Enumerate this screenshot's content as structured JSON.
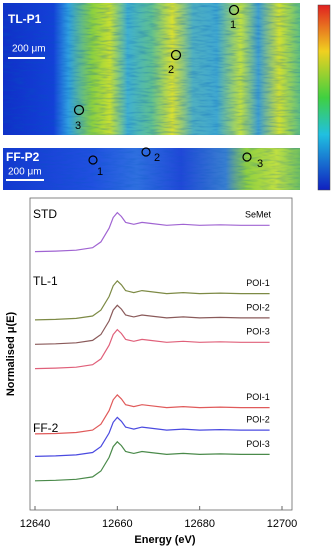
{
  "panels": [
    {
      "label": "TL-P1",
      "scale_bar": "200 μm",
      "points": [
        "1",
        "2",
        "3"
      ]
    },
    {
      "label": "FF-P2",
      "scale_bar": "200 μm",
      "points": [
        "1",
        "2",
        "3"
      ]
    }
  ],
  "chart_data": {
    "type": "line",
    "x_label": "Energy (eV)",
    "y_label": "Normalised μ(E)",
    "group_labels": [
      "STD",
      "TL-1",
      "FF-2"
    ],
    "x": [
      12640,
      12645,
      12650,
      12654,
      12656,
      12658,
      12659,
      12660,
      12661,
      12662,
      12664,
      12666,
      12668,
      12672,
      12676,
      12680,
      12685,
      12690,
      12697
    ],
    "xlim": [
      12640,
      12700
    ],
    "xticks": [
      12640,
      12660,
      12680,
      12700
    ],
    "ylim": [
      0,
      32
    ],
    "series": [
      {
        "name": "SeMet",
        "color": "#a064d2",
        "values": [
          26.5,
          26.55,
          26.65,
          26.9,
          27.5,
          28.9,
          30.0,
          30.5,
          30.1,
          29.5,
          29.3,
          29.5,
          29.4,
          29.2,
          29.3,
          29.2,
          29.25,
          29.2,
          29.2
        ]
      },
      {
        "name": "POI-1",
        "color": "#7d8a45",
        "values": [
          19.5,
          19.55,
          19.65,
          19.9,
          20.5,
          21.9,
          23.0,
          23.5,
          23.1,
          22.5,
          22.3,
          22.5,
          22.4,
          22.2,
          22.3,
          22.2,
          22.25,
          22.2,
          22.2
        ]
      },
      {
        "name": "POI-2",
        "color": "#8a5a5a",
        "values": [
          17.0,
          17.05,
          17.15,
          17.4,
          18.0,
          19.4,
          20.5,
          21.0,
          20.6,
          20.0,
          19.8,
          20.0,
          19.9,
          19.7,
          19.8,
          19.7,
          19.75,
          19.7,
          19.7
        ]
      },
      {
        "name": "POI-3",
        "color": "#e0607a",
        "values": [
          14.5,
          14.55,
          14.65,
          14.9,
          15.5,
          16.9,
          18.0,
          18.5,
          18.1,
          17.5,
          17.3,
          17.5,
          17.4,
          17.2,
          17.3,
          17.2,
          17.25,
          17.2,
          17.2
        ]
      },
      {
        "name": "POI-1",
        "color": "#e05a5a",
        "values": [
          7.8,
          7.85,
          7.95,
          8.2,
          8.8,
          10.2,
          11.3,
          11.8,
          11.4,
          10.8,
          10.6,
          10.8,
          10.7,
          10.5,
          10.6,
          10.5,
          10.55,
          10.5,
          10.5
        ]
      },
      {
        "name": "POI-2",
        "color": "#4a4ae0",
        "values": [
          5.5,
          5.55,
          5.65,
          5.9,
          6.5,
          7.9,
          9.0,
          9.5,
          9.1,
          8.5,
          8.3,
          8.5,
          8.4,
          8.2,
          8.3,
          8.2,
          8.25,
          8.2,
          8.2
        ]
      },
      {
        "name": "POI-3",
        "color": "#4a8a4a",
        "values": [
          3.0,
          3.05,
          3.15,
          3.4,
          4.0,
          5.4,
          6.5,
          7.0,
          6.6,
          6.0,
          5.8,
          6.0,
          5.9,
          5.7,
          5.8,
          5.7,
          5.75,
          5.7,
          5.7
        ]
      }
    ]
  }
}
